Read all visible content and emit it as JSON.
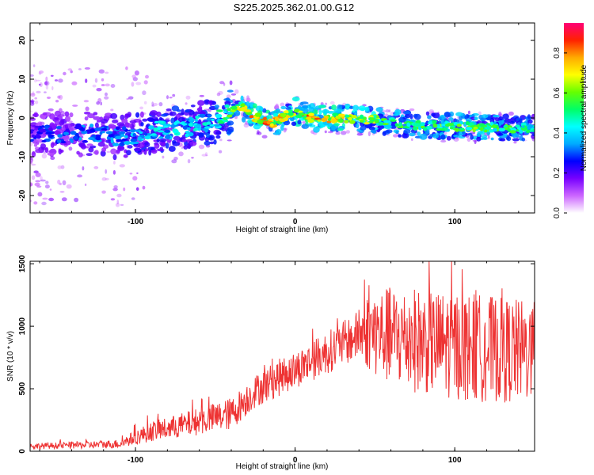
{
  "figure": {
    "title": "S225.2025.362.01.00.G12"
  },
  "chart_data": [
    {
      "type": "heatmap",
      "xlabel": "Height of straight line (km)",
      "ylabel": "Frequency (Hz)",
      "xlim": [
        -166,
        150
      ],
      "ylim": [
        -24.5,
        24.5
      ],
      "xticks": [
        -100,
        0,
        100
      ],
      "yticks": [
        -20,
        -10,
        0,
        10,
        20
      ],
      "colorbar": {
        "label": "Normalized spectral amplitude",
        "range": [
          0.0,
          0.95
        ],
        "ticks": [
          0.0,
          0.2,
          0.4,
          0.6,
          0.8
        ],
        "colors": [
          "#ffffff",
          "#cc66ff",
          "#7700ff",
          "#0000ff",
          "#00aaff",
          "#00ffff",
          "#00ff66",
          "#66ff00",
          "#ffff00",
          "#ffaa00",
          "#ff2200",
          "#ff0077"
        ]
      },
      "ridge": {
        "x": [
          -166,
          -150,
          -130,
          -110,
          -100,
          -90,
          -80,
          -70,
          -60,
          -50,
          -45,
          -40,
          -36,
          -32,
          -28,
          -24,
          -20,
          -16,
          -12,
          -8,
          -4,
          0,
          4,
          8,
          12,
          16,
          20,
          30,
          40,
          50,
          60,
          70,
          80,
          90,
          100,
          110,
          120,
          130,
          140,
          150
        ],
        "y": [
          -4.0,
          -4.2,
          -4.0,
          -4.8,
          -4.3,
          -3.4,
          -3.0,
          -2.5,
          -1.6,
          -0.8,
          0.5,
          2.0,
          3.5,
          2.6,
          1.0,
          0.0,
          -0.8,
          -1.6,
          -1.0,
          0.0,
          1.0,
          1.8,
          1.0,
          0.3,
          0.0,
          0.2,
          0.0,
          0.0,
          -0.3,
          -0.5,
          -1.2,
          -1.6,
          -2.0,
          -2.0,
          -2.2,
          -2.3,
          -2.4,
          -2.5,
          -2.6,
          -2.8
        ],
        "amplitude": [
          0.3,
          0.3,
          0.35,
          0.35,
          0.4,
          0.45,
          0.45,
          0.45,
          0.45,
          0.5,
          0.55,
          0.6,
          0.65,
          0.75,
          0.8,
          0.8,
          0.82,
          0.85,
          0.8,
          0.75,
          0.7,
          0.72,
          0.8,
          0.85,
          0.85,
          0.8,
          0.78,
          0.75,
          0.72,
          0.68,
          0.6,
          0.6,
          0.6,
          0.62,
          0.6,
          0.62,
          0.62,
          0.58,
          0.55,
          0.5
        ]
      }
    },
    {
      "type": "line",
      "xlabel": "Height of straight line (km)",
      "ylabel": "SNR (10 * v/v)",
      "xlim": [
        -166,
        150
      ],
      "ylim": [
        0,
        1520
      ],
      "xticks": [
        -100,
        0,
        100
      ],
      "yticks": [
        0,
        500,
        1000,
        1500
      ],
      "color": "#ee3333",
      "envelope": {
        "x": [
          -166,
          -150,
          -130,
          -110,
          -100,
          -90,
          -80,
          -70,
          -60,
          -50,
          -40,
          -30,
          -25,
          -20,
          -10,
          0,
          10,
          20,
          30,
          40,
          45,
          50,
          60,
          70,
          80,
          90,
          100,
          110,
          120,
          130,
          140,
          150
        ],
        "y": [
          40,
          45,
          50,
          60,
          110,
          160,
          180,
          210,
          240,
          270,
          300,
          420,
          480,
          520,
          590,
          650,
          720,
          790,
          860,
          930,
          960,
          950,
          920,
          900,
          880,
          860,
          850,
          830,
          820,
          810,
          800,
          800
        ],
        "spread": [
          25,
          25,
          30,
          35,
          60,
          80,
          90,
          100,
          110,
          120,
          130,
          130,
          130,
          140,
          150,
          150,
          160,
          170,
          180,
          200,
          300,
          350,
          400,
          420,
          420,
          420,
          440,
          440,
          430,
          420,
          420,
          400
        ]
      }
    }
  ]
}
